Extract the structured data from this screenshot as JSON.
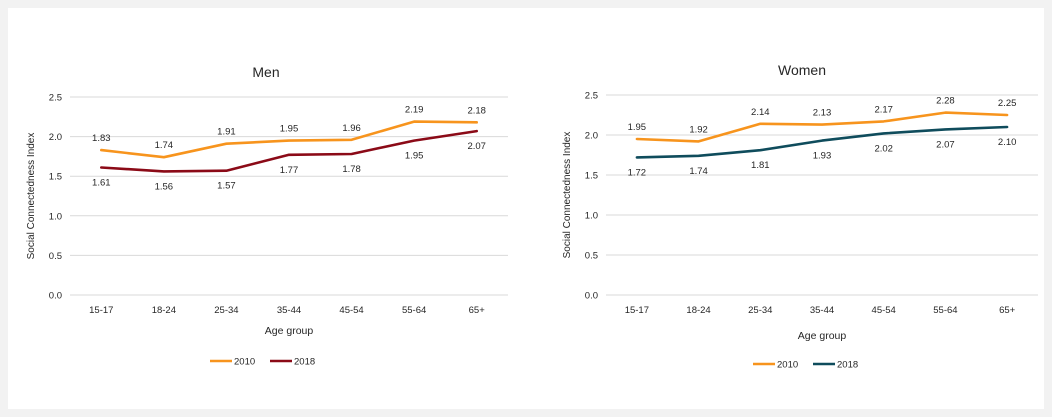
{
  "chart_data": [
    {
      "type": "line",
      "title": "Men",
      "xlabel": "Age group",
      "ylabel": "Social Connectedness Index",
      "ylim": [
        0,
        2.5
      ],
      "yticks": [
        "0.0",
        "0.5",
        "1.0",
        "1.5",
        "2.0",
        "2.5"
      ],
      "ytick_values": [
        0,
        0.5,
        1.0,
        1.5,
        2.0,
        2.5
      ],
      "categories": [
        "15-17",
        "18-24",
        "25-34",
        "35-44",
        "45-54",
        "55-64",
        "65+"
      ],
      "grid": true,
      "legend_position": "bottom",
      "series": [
        {
          "name": "2010",
          "color": "#f7941d",
          "values": [
            1.83,
            1.74,
            1.91,
            1.95,
            1.96,
            2.19,
            2.18
          ],
          "labels": [
            "1.83",
            "1.74",
            "1.91",
            "1.95",
            "1.96",
            "2.19",
            "2.18"
          ]
        },
        {
          "name": "2018",
          "color": "#8b0a17",
          "values": [
            1.61,
            1.56,
            1.57,
            1.77,
            1.78,
            1.95,
            2.07
          ],
          "labels": [
            "1.61",
            "1.56",
            "1.57",
            "1.77",
            "1.78",
            "1.95",
            "2.07"
          ]
        }
      ]
    },
    {
      "type": "line",
      "title": "Women",
      "xlabel": "Age group",
      "ylabel": "Social Connectedness Index",
      "ylim": [
        0,
        2.5
      ],
      "yticks": [
        "0.0",
        "0.5",
        "1.0",
        "1.5",
        "2.0",
        "2.5"
      ],
      "ytick_values": [
        0,
        0.5,
        1.0,
        1.5,
        2.0,
        2.5
      ],
      "categories": [
        "15-17",
        "18-24",
        "25-34",
        "35-44",
        "45-54",
        "55-64",
        "65+"
      ],
      "grid": true,
      "legend_position": "bottom",
      "series": [
        {
          "name": "2010",
          "color": "#f7941d",
          "values": [
            1.95,
            1.92,
            2.14,
            2.13,
            2.17,
            2.28,
            2.25
          ],
          "labels": [
            "1.95",
            "1.92",
            "2.14",
            "2.13",
            "2.17",
            "2.28",
            "2.25"
          ]
        },
        {
          "name": "2018",
          "color": "#0f4c5c",
          "values": [
            1.72,
            1.74,
            1.81,
            1.93,
            2.02,
            2.07,
            2.1
          ],
          "labels": [
            "1.72",
            "1.74",
            "1.81",
            "1.93",
            "2.02",
            "2.07",
            "2.10"
          ]
        }
      ]
    }
  ]
}
